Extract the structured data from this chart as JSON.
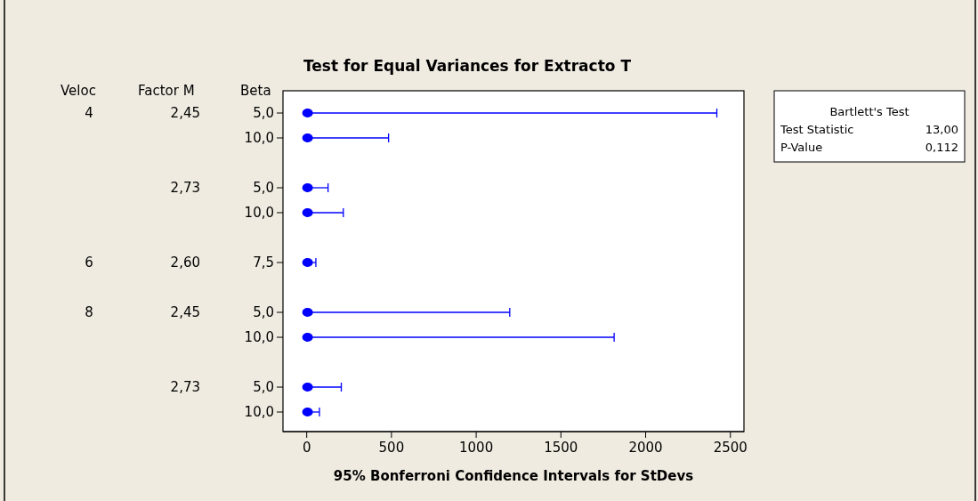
{
  "chart_data": {
    "type": "scatter",
    "orientation": "horizontal",
    "title": "Test for Equal Variances for Extracto T",
    "xlabel": "95% Bonferroni Confidence Intervals for StDevs",
    "ylabel": "Veloc\tFactor M\tBeta",
    "categories": [
      "4\t2,45\t5,0",
      "\t\t10,0",
      null,
      "\t2,73\t5,0",
      "\t\t10,0",
      null,
      "6\t2,60\t7,5",
      null,
      "8\t2,45\t5,0",
      "\t\t10,0",
      null,
      "\t2,73\t5,0",
      "\t\t10,0"
    ],
    "series": [
      {
        "color": "#0000ff",
        "values": [
          5,
          5,
          null,
          5,
          5,
          null,
          5,
          null,
          5,
          5,
          null,
          5,
          5
        ],
        "errors": [
          [
            2,
            2420
          ],
          [
            2,
            483
          ],
          null,
          [
            2,
            126
          ],
          [
            2,
            216
          ],
          null,
          [
            2,
            54
          ],
          null,
          [
            2,
            1198
          ],
          [
            2,
            1814
          ],
          null,
          [
            2,
            204
          ],
          [
            2,
            75
          ]
        ]
      }
    ],
    "xlim": [
      -140,
      2580
    ],
    "xticks": [
      0,
      500,
      1000,
      1500,
      2000,
      2500
    ],
    "marker": "circle",
    "annotations": [
      "Bartlett's Test",
      "Test Statistic\t13,00",
      "P-Value\t0,112"
    ]
  }
}
